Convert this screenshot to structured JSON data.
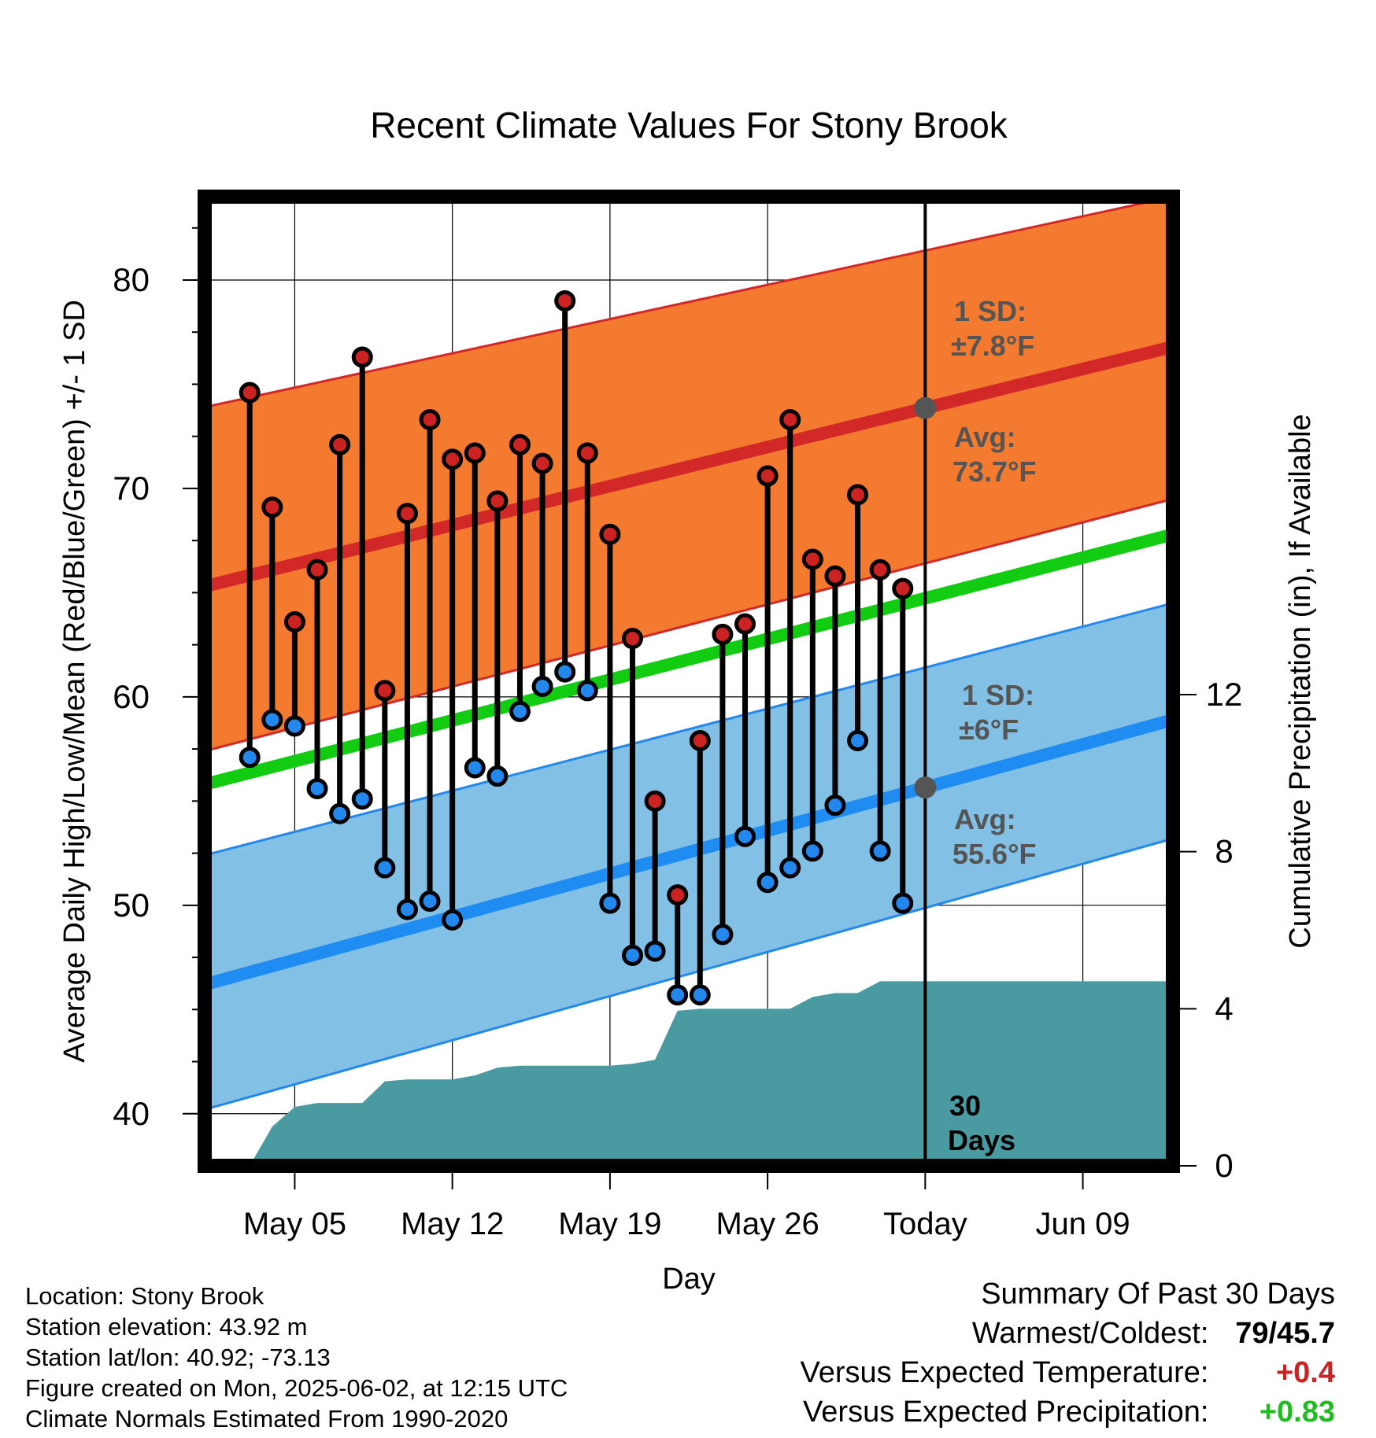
{
  "chart_data": {
    "type": "line",
    "title": "Recent Climate Values For Stony Brook",
    "xlabel": "Day",
    "ylabel": "Average Daily High/Low/Mean (Red/Blue/Green) +/- 1 SD",
    "y2label": "Cumulative Precipitation (in), If Available",
    "ylim": [
      37.5,
      84
    ],
    "y2lim": [
      0,
      24.68
    ],
    "yticks": [
      40,
      50,
      60,
      70,
      80
    ],
    "y2ticks": [
      0,
      4,
      8,
      12
    ],
    "xlim": [
      "2025-05-01",
      "2025-06-13"
    ],
    "xticks": [
      {
        "date": "2025-05-05",
        "label": "May 05"
      },
      {
        "date": "2025-05-12",
        "label": "May 12"
      },
      {
        "date": "2025-05-19",
        "label": "May 19"
      },
      {
        "date": "2025-05-26",
        "label": "May 26"
      },
      {
        "date": "2025-06-02",
        "label": "Today"
      },
      {
        "date": "2025-06-09",
        "label": "Jun 09"
      }
    ],
    "today": "2025-06-02",
    "grid": true,
    "normals": {
      "high_avg": [
        {
          "date": "2025-05-01",
          "value": 65.3
        },
        {
          "date": "2025-06-13",
          "value": 76.8
        }
      ],
      "high_upper": [
        {
          "date": "2025-05-01",
          "value": 73.9
        },
        {
          "date": "2025-06-13",
          "value": 84.0
        }
      ],
      "high_lower": [
        {
          "date": "2025-05-01",
          "value": 57.4
        },
        {
          "date": "2025-06-13",
          "value": 69.5
        }
      ],
      "mean_avg": [
        {
          "date": "2025-05-01",
          "value": 55.8
        },
        {
          "date": "2025-06-13",
          "value": 67.8
        }
      ],
      "low_avg": [
        {
          "date": "2025-05-01",
          "value": 46.2
        },
        {
          "date": "2025-06-13",
          "value": 58.9
        }
      ],
      "low_upper": [
        {
          "date": "2025-05-01",
          "value": 52.4
        },
        {
          "date": "2025-06-13",
          "value": 64.5
        }
      ],
      "low_lower": [
        {
          "date": "2025-05-01",
          "value": 40.2
        },
        {
          "date": "2025-06-13",
          "value": 53.2
        }
      ]
    },
    "series": [
      {
        "name": "High",
        "color": "#cc2222",
        "points": [
          {
            "date": "2025-05-03",
            "value": 74.6
          },
          {
            "date": "2025-05-04",
            "value": 69.1
          },
          {
            "date": "2025-05-05",
            "value": 63.6
          },
          {
            "date": "2025-05-06",
            "value": 66.1
          },
          {
            "date": "2025-05-07",
            "value": 72.1
          },
          {
            "date": "2025-05-08",
            "value": 76.3
          },
          {
            "date": "2025-05-09",
            "value": 60.3
          },
          {
            "date": "2025-05-10",
            "value": 68.8
          },
          {
            "date": "2025-05-11",
            "value": 73.3
          },
          {
            "date": "2025-05-12",
            "value": 71.4
          },
          {
            "date": "2025-05-13",
            "value": 71.7
          },
          {
            "date": "2025-05-14",
            "value": 69.4
          },
          {
            "date": "2025-05-15",
            "value": 72.1
          },
          {
            "date": "2025-05-16",
            "value": 71.2
          },
          {
            "date": "2025-05-17",
            "value": 79.0
          },
          {
            "date": "2025-05-18",
            "value": 71.7
          },
          {
            "date": "2025-05-19",
            "value": 67.8
          },
          {
            "date": "2025-05-20",
            "value": 62.8
          },
          {
            "date": "2025-05-21",
            "value": 55.0
          },
          {
            "date": "2025-05-22",
            "value": 50.5
          },
          {
            "date": "2025-05-23",
            "value": 57.9
          },
          {
            "date": "2025-05-24",
            "value": 63.0
          },
          {
            "date": "2025-05-25",
            "value": 63.5
          },
          {
            "date": "2025-05-26",
            "value": 70.6
          },
          {
            "date": "2025-05-27",
            "value": 73.3
          },
          {
            "date": "2025-05-28",
            "value": 66.6
          },
          {
            "date": "2025-05-29",
            "value": 65.8
          },
          {
            "date": "2025-05-30",
            "value": 69.7
          },
          {
            "date": "2025-05-31",
            "value": 66.1
          },
          {
            "date": "2025-06-01",
            "value": 65.2
          }
        ]
      },
      {
        "name": "Low",
        "color": "#2288ee",
        "points": [
          {
            "date": "2025-05-03",
            "value": 57.1
          },
          {
            "date": "2025-05-04",
            "value": 58.9
          },
          {
            "date": "2025-05-05",
            "value": 58.6
          },
          {
            "date": "2025-05-06",
            "value": 55.6
          },
          {
            "date": "2025-05-07",
            "value": 54.4
          },
          {
            "date": "2025-05-08",
            "value": 55.1
          },
          {
            "date": "2025-05-09",
            "value": 51.8
          },
          {
            "date": "2025-05-10",
            "value": 49.8
          },
          {
            "date": "2025-05-11",
            "value": 50.2
          },
          {
            "date": "2025-05-12",
            "value": 49.3
          },
          {
            "date": "2025-05-13",
            "value": 56.6
          },
          {
            "date": "2025-05-14",
            "value": 56.2
          },
          {
            "date": "2025-05-15",
            "value": 59.3
          },
          {
            "date": "2025-05-16",
            "value": 60.5
          },
          {
            "date": "2025-05-17",
            "value": 61.2
          },
          {
            "date": "2025-05-18",
            "value": 60.3
          },
          {
            "date": "2025-05-19",
            "value": 50.1
          },
          {
            "date": "2025-05-20",
            "value": 47.6
          },
          {
            "date": "2025-05-21",
            "value": 47.8
          },
          {
            "date": "2025-05-22",
            "value": 45.7
          },
          {
            "date": "2025-05-23",
            "value": 45.7
          },
          {
            "date": "2025-05-24",
            "value": 48.6
          },
          {
            "date": "2025-05-25",
            "value": 53.3
          },
          {
            "date": "2025-05-26",
            "value": 51.1
          },
          {
            "date": "2025-05-27",
            "value": 51.8
          },
          {
            "date": "2025-05-28",
            "value": 52.6
          },
          {
            "date": "2025-05-29",
            "value": 54.8
          },
          {
            "date": "2025-05-30",
            "value": 57.9
          },
          {
            "date": "2025-05-31",
            "value": 52.6
          },
          {
            "date": "2025-06-01",
            "value": 50.1
          }
        ]
      }
    ],
    "precipitation": [
      {
        "date": "2025-05-03",
        "value": 0.0
      },
      {
        "date": "2025-05-04",
        "value": 1.0
      },
      {
        "date": "2025-05-05",
        "value": 1.5
      },
      {
        "date": "2025-05-06",
        "value": 1.6
      },
      {
        "date": "2025-05-07",
        "value": 1.6
      },
      {
        "date": "2025-05-08",
        "value": 1.6
      },
      {
        "date": "2025-05-09",
        "value": 2.15
      },
      {
        "date": "2025-05-10",
        "value": 2.2
      },
      {
        "date": "2025-05-11",
        "value": 2.2
      },
      {
        "date": "2025-05-12",
        "value": 2.2
      },
      {
        "date": "2025-05-13",
        "value": 2.3
      },
      {
        "date": "2025-05-14",
        "value": 2.5
      },
      {
        "date": "2025-05-15",
        "value": 2.55
      },
      {
        "date": "2025-05-16",
        "value": 2.55
      },
      {
        "date": "2025-05-17",
        "value": 2.55
      },
      {
        "date": "2025-05-18",
        "value": 2.55
      },
      {
        "date": "2025-05-19",
        "value": 2.55
      },
      {
        "date": "2025-05-20",
        "value": 2.6
      },
      {
        "date": "2025-05-21",
        "value": 2.7
      },
      {
        "date": "2025-05-22",
        "value": 3.95
      },
      {
        "date": "2025-05-23",
        "value": 4.0
      },
      {
        "date": "2025-05-24",
        "value": 4.0
      },
      {
        "date": "2025-05-25",
        "value": 4.0
      },
      {
        "date": "2025-05-26",
        "value": 4.0
      },
      {
        "date": "2025-05-27",
        "value": 4.0
      },
      {
        "date": "2025-05-28",
        "value": 4.3
      },
      {
        "date": "2025-05-29",
        "value": 4.4
      },
      {
        "date": "2025-05-30",
        "value": 4.4
      },
      {
        "date": "2025-05-31",
        "value": 4.7
      },
      {
        "date": "2025-06-01",
        "value": 4.7
      },
      {
        "date": "2025-06-02",
        "value": 4.7
      },
      {
        "date": "2025-06-13",
        "value": 4.7
      }
    ],
    "annotations": {
      "high_sd_title": "1 SD:",
      "high_sd_value": "±7.8°F",
      "high_avg_title": "Avg:",
      "high_avg_value": "73.7°F",
      "low_sd_title": "1 SD:",
      "low_sd_value": "±6°F",
      "low_avg_title": "Avg:",
      "low_avg_value": "55.6°F",
      "days_line1": "30",
      "days_line2": "Days"
    },
    "colors": {
      "high_band": "#f47a30",
      "high_line": "#d22828",
      "mean_line": "#11cc11",
      "low_band": "#82c0e6",
      "low_line": "#1e8cf0",
      "low_band_edge": "#2288ee",
      "precip": "#4a9aa2",
      "annotation_text": "#555555"
    }
  },
  "info": {
    "location": "Location: Stony Brook",
    "elevation": "Station elevation: 43.92 m",
    "latlon": "Station lat/lon: 40.92; -73.13",
    "created": "Figure created on Mon, 2025-06-02, at 12:15 UTC",
    "normals": "Climate Normals Estimated From 1990-2020"
  },
  "summary": {
    "title": "Summary Of Past 30 Days",
    "warmest_label": "Warmest/Coldest:",
    "warmest_value": "79/45.7",
    "temp_label": "Versus Expected Temperature:",
    "temp_value": "+0.4",
    "temp_color": "#cc2222",
    "precip_label": "Versus Expected Precipitation:",
    "precip_value": "+0.83",
    "precip_color": "#22bb22"
  }
}
